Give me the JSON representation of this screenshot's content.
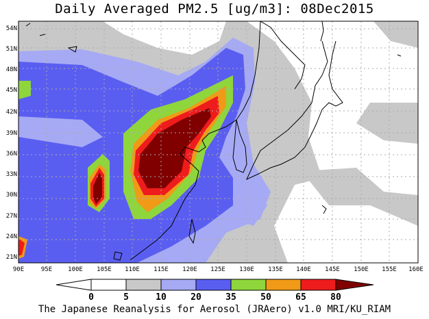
{
  "title": "Daily Averaged PM2.5 [ug/m3]: 08Dec2015",
  "credit": "The Japanese Reanalysis for Aerosol (JRAero) v1.0 MRI/KU_RIAM",
  "lon_labels": [
    "90E",
    "95E",
    "100E",
    "105E",
    "110E",
    "115E",
    "120E",
    "125E",
    "130E",
    "135E",
    "140E",
    "145E",
    "150E",
    "155E",
    "160E"
  ],
  "lat_labels": [
    "21N",
    "24N",
    "27N",
    "30N",
    "33N",
    "36N",
    "39N",
    "42N",
    "45N",
    "48N",
    "51N",
    "54N"
  ],
  "legend": {
    "thresholds": [
      "0",
      "5",
      "10",
      "20",
      "35",
      "50",
      "65",
      "80"
    ],
    "colors": [
      "#ffffff",
      "#c8c8c8",
      "#a6aaf4",
      "#5a5ef0",
      "#8ed63c",
      "#f09a18",
      "#ee1c1c",
      "#800000"
    ],
    "below_color": "#ffffff",
    "above_color": "#800000"
  },
  "map_colors": {
    "land_outline": "#000000",
    "grid": "#aaaaaa"
  }
}
